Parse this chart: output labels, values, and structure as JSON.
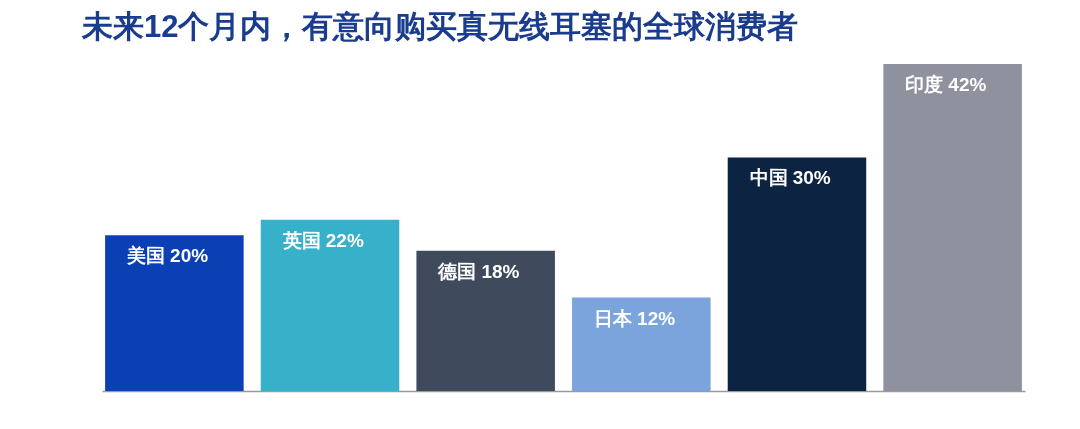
{
  "chart_data": {
    "type": "bar",
    "title": "未来12个月内，有意向购买真无线耳塞的全球消费者",
    "categories": [
      "美国",
      "英国",
      "德国",
      "日本",
      "中国",
      "印度"
    ],
    "values": [
      20,
      22,
      18,
      12,
      30,
      42
    ],
    "colors": [
      "#0b40b4",
      "#37b1c9",
      "#3f4b5d",
      "#7ba4dc",
      "#0d2342",
      "#8f919f"
    ],
    "data_labels": true,
    "value_labels": [
      "20%",
      "22%",
      "18%",
      "12%",
      "30%",
      "42%"
    ]
  }
}
